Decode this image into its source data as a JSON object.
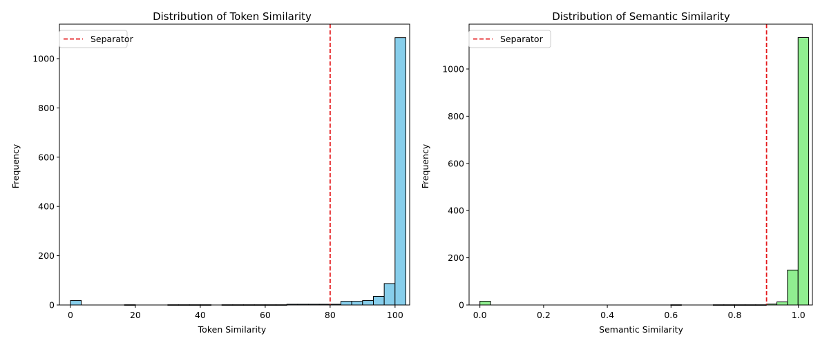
{
  "chart_data": [
    {
      "type": "bar",
      "title": "Distribution of Token Similarity",
      "xlabel": "Token Similarity",
      "ylabel": "Frequency",
      "xlim": [
        -3.4,
        104.5
      ],
      "ylim": [
        0,
        1140
      ],
      "xticks": [
        0,
        20,
        40,
        60,
        80,
        100
      ],
      "yticks": [
        0,
        200,
        400,
        600,
        800,
        1000
      ],
      "bin_start": 0,
      "bin_width": 3.333,
      "values": [
        18,
        0,
        0,
        0,
        0,
        1,
        0,
        0,
        0,
        1,
        1,
        1,
        1,
        0,
        1,
        1,
        1,
        1,
        1,
        1,
        3,
        3,
        3,
        3,
        3,
        15,
        15,
        18,
        35,
        87,
        1085
      ],
      "bar_color": "#87ceeb",
      "separator_x": 80,
      "separator_color": "#e41a1c",
      "legend": {
        "label": "Separator",
        "position": "upper-left"
      }
    },
    {
      "type": "bar",
      "title": "Distribution of Semantic Similarity",
      "xlabel": "Semantic Similarity",
      "ylabel": "Frequency",
      "xlim": [
        -0.034,
        1.044
      ],
      "ylim": [
        0,
        1190
      ],
      "xticks": [
        0.0,
        0.2,
        0.4,
        0.6,
        0.8,
        1.0
      ],
      "xtick_labels": [
        "0.0",
        "0.2",
        "0.4",
        "0.6",
        "0.8",
        "1.0"
      ],
      "yticks": [
        0,
        200,
        400,
        600,
        800,
        1000
      ],
      "bin_start": 0,
      "bin_width": 0.0333,
      "values": [
        16,
        0,
        0,
        0,
        0,
        0,
        0,
        0,
        0,
        0,
        0,
        0,
        0,
        0,
        0,
        0,
        0,
        0,
        1,
        0,
        0,
        0,
        1,
        1,
        1,
        1,
        1,
        4,
        13,
        148,
        1133
      ],
      "bar_color": "#90ee90",
      "separator_x": 0.9,
      "separator_color": "#e41a1c",
      "legend": {
        "label": "Separator",
        "position": "upper-left"
      }
    }
  ]
}
